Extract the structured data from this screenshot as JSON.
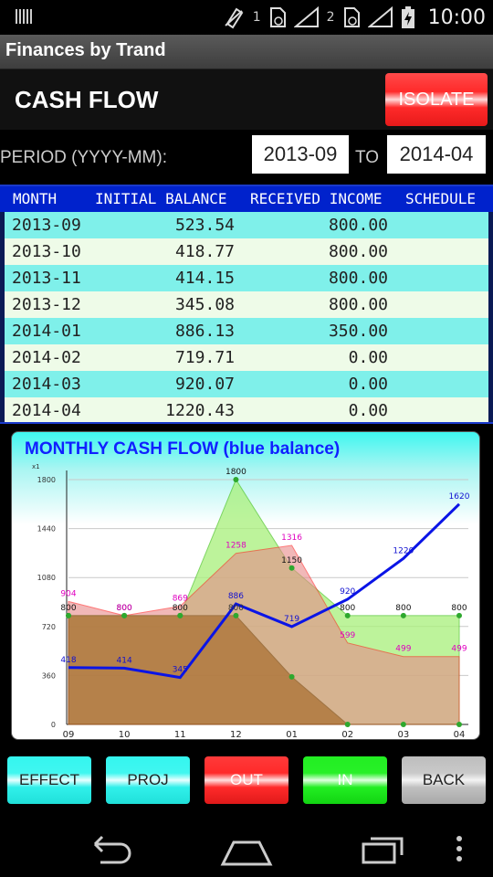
{
  "status_bar": {
    "time": "10:00",
    "sim1": "1",
    "sim2": "2",
    "icons": [
      "barcode-icon",
      "no-sim-icon",
      "signal-icon",
      "battery-charging-icon"
    ]
  },
  "app_title": "Finances by Trand",
  "header": {
    "title": "CASH FLOW",
    "isolate_label": "ISOLATE"
  },
  "period": {
    "label": "PERIOD (YYYY-MM):",
    "from": "2013-09",
    "to_label": "TO",
    "to": "2014-04"
  },
  "table": {
    "columns": [
      "MONTH",
      "INITIAL BALANCE",
      "RECEIVED INCOME",
      "SCHEDULE"
    ],
    "rows": [
      {
        "month": "2013-09",
        "initial_balance": "523.54",
        "received_income": "800.00"
      },
      {
        "month": "2013-10",
        "initial_balance": "418.77",
        "received_income": "800.00"
      },
      {
        "month": "2013-11",
        "initial_balance": "414.15",
        "received_income": "800.00"
      },
      {
        "month": "2013-12",
        "initial_balance": "345.08",
        "received_income": "800.00"
      },
      {
        "month": "2014-01",
        "initial_balance": "886.13",
        "received_income": "350.00"
      },
      {
        "month": "2014-02",
        "initial_balance": "719.71",
        "received_income": "0.00"
      },
      {
        "month": "2014-03",
        "initial_balance": "920.07",
        "received_income": "0.00"
      },
      {
        "month": "2014-04",
        "initial_balance": "1220.43",
        "received_income": "0.00"
      }
    ]
  },
  "chart_title": "MONTHLY CASH FLOW (blue balance)",
  "chart_data": {
    "type": "area",
    "title": "MONTHLY CASH FLOW (blue balance)",
    "y_multiplier_label": "x1",
    "categories": [
      "09",
      "10",
      "11",
      "12",
      "01",
      "02",
      "03",
      "04"
    ],
    "yticks": [
      0,
      360,
      720,
      1080,
      1440,
      1800
    ],
    "ylim": [
      0,
      1800
    ],
    "grid": true,
    "series": [
      {
        "name": "balance",
        "color": "#0a14e6",
        "values": [
          418,
          414,
          345,
          886,
          719,
          920,
          1220,
          1620
        ],
        "labels": [
          "418",
          "414",
          "345",
          "886",
          "719",
          "920",
          "1220",
          "1620"
        ]
      },
      {
        "color": "#e06a6a",
        "values": [
          904,
          800,
          869,
          1258,
          1316,
          599,
          499,
          499
        ],
        "labels": [
          "904",
          "800",
          "869",
          "1258",
          "1316",
          "599",
          "499",
          "499"
        ]
      },
      {
        "color": "#7ee85a",
        "values": [
          800,
          800,
          800,
          1800,
          1150,
          800,
          800,
          800
        ],
        "labels": [
          "800",
          "800",
          "800",
          "1800",
          "1150",
          "800",
          "800",
          "800"
        ]
      },
      {
        "color": "#a0601c",
        "values": [
          800,
          800,
          800,
          800,
          350,
          0,
          0,
          0
        ],
        "labels": [
          "",
          "",
          "",
          "800",
          "",
          "",
          "",
          ""
        ]
      }
    ]
  },
  "buttons": {
    "effect": "EFFECT",
    "proj": "PROJ",
    "out": "OUT",
    "in": "IN",
    "back": "BACK"
  },
  "nav": {
    "icons": [
      "back-arrow-icon",
      "home-icon",
      "recent-apps-icon",
      "overflow-menu-icon"
    ]
  }
}
